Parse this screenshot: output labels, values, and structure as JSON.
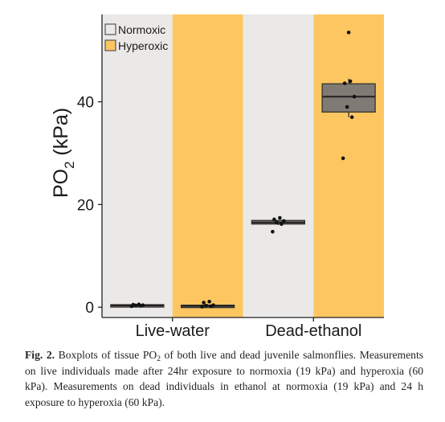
{
  "chart_data": {
    "type": "boxplot",
    "categories": [
      "Live-water",
      "Dead-ethanol"
    ],
    "groups": [
      {
        "category": "Live-water",
        "condition": "Normoxic",
        "box": {
          "q1": 0.2,
          "median": 0.35,
          "q3": 0.5,
          "whisker_low": 0.05,
          "whisker_high": 0.6
        },
        "points": [
          0.2,
          0.3,
          0.35,
          0.4,
          0.5,
          0.55
        ]
      },
      {
        "category": "Live-water",
        "condition": "Hyperoxic",
        "box": {
          "q1": 0.1,
          "median": 0.25,
          "q3": 0.4,
          "whisker_low": 0.05,
          "whisker_high": 0.6
        },
        "points": [
          0.1,
          0.2,
          0.3,
          0.4,
          0.9,
          1.1
        ]
      },
      {
        "category": "Dead-ethanol",
        "condition": "Normoxic",
        "box": {
          "q1": 16.2,
          "median": 16.5,
          "q3": 16.9,
          "whisker_low": 16.0,
          "whisker_high": 17.0
        },
        "points": [
          14.7,
          16.2,
          16.5,
          16.8,
          17.1,
          17.4
        ]
      },
      {
        "category": "Dead-ethanol",
        "condition": "Hyperoxic",
        "box": {
          "q1": 38.0,
          "median": 41.0,
          "q3": 43.5,
          "whisker_low": 37.0,
          "whisker_high": 44.5
        },
        "points": [
          29.0,
          37.0,
          39.0,
          41.0,
          43.6,
          44.0,
          53.5
        ]
      }
    ],
    "ylabel": "PO",
    "ylabel_subscript": "2",
    "ylabel_unit": " (kPa)",
    "yticks": [
      0,
      20,
      40
    ],
    "ylim": [
      -2,
      57
    ],
    "legend": {
      "placement": "top-left",
      "entries": [
        {
          "name": "Normoxic",
          "color": "#ebe9e7"
        },
        {
          "name": "Hyperoxic",
          "color": "#fdc661"
        }
      ]
    },
    "colors": {
      "normoxic_band": "#ebe9e7",
      "hyperoxic_band": "#fdc661",
      "box_fill": "#7f7a73",
      "box_stroke": "#333333",
      "point": "#111111"
    }
  },
  "caption": {
    "fig_label": "Fig. 2.",
    "t1": " Boxplots of tissue PO",
    "t1_sub": "2",
    "t2": " of both live and dead juvenile salmonflies. Measurements on live individuals made after 24hr exposure to normoxia (19 kPa) and hyperoxia (60 kPa). Measurements on dead individuals in ethanol at normoxia (19 kPa) and 24 h exposure to hyperoxia (60 kPa)."
  }
}
